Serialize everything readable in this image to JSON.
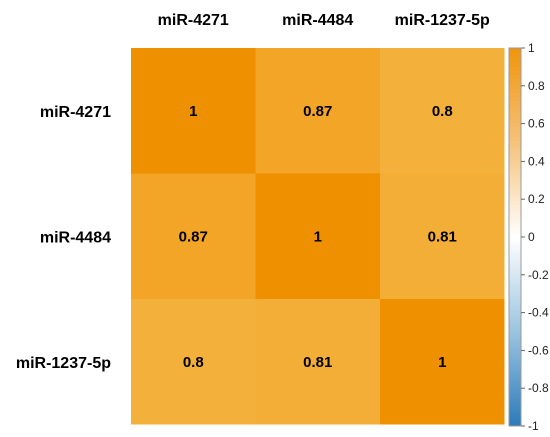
{
  "chart_data": {
    "type": "heatmap",
    "columns": [
      "miR-4271",
      "miR-4484",
      "miR-1237-5p"
    ],
    "rows": [
      "miR-4271",
      "miR-4484",
      "miR-1237-5p"
    ],
    "values": [
      [
        1,
        0.87,
        0.8
      ],
      [
        0.87,
        1,
        0.81
      ],
      [
        0.8,
        0.81,
        1
      ]
    ],
    "cell_labels": [
      [
        "1",
        "0.87",
        "0.8"
      ],
      [
        "0.87",
        "1",
        "0.81"
      ],
      [
        "0.8",
        "0.81",
        "1"
      ]
    ],
    "color_scale": {
      "min": -1,
      "max": 1,
      "low_color": "#2b7bba",
      "mid_color": "#ffffff",
      "high_color": "#f0940c",
      "ticks": [
        "1",
        "0.8",
        "0.6",
        "0.4",
        "0.2",
        "0",
        "-0.2",
        "-0.4",
        "-0.6",
        "-0.8",
        "-1"
      ],
      "position": "right"
    }
  }
}
